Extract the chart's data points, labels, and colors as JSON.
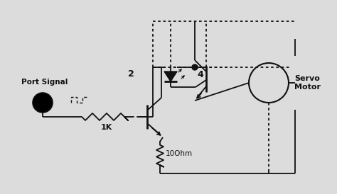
{
  "bg_color": "#dcdcdc",
  "line_color": "#111111",
  "text_color": "#111111",
  "labels": {
    "port_signal": "Port Signal",
    "resistor1": "1K",
    "resistor2": "10Ohm",
    "servo": "Servo\nMotor",
    "node2": "2",
    "node4": "4"
  },
  "figsize": [
    4.74,
    2.74
  ],
  "dpi": 100
}
